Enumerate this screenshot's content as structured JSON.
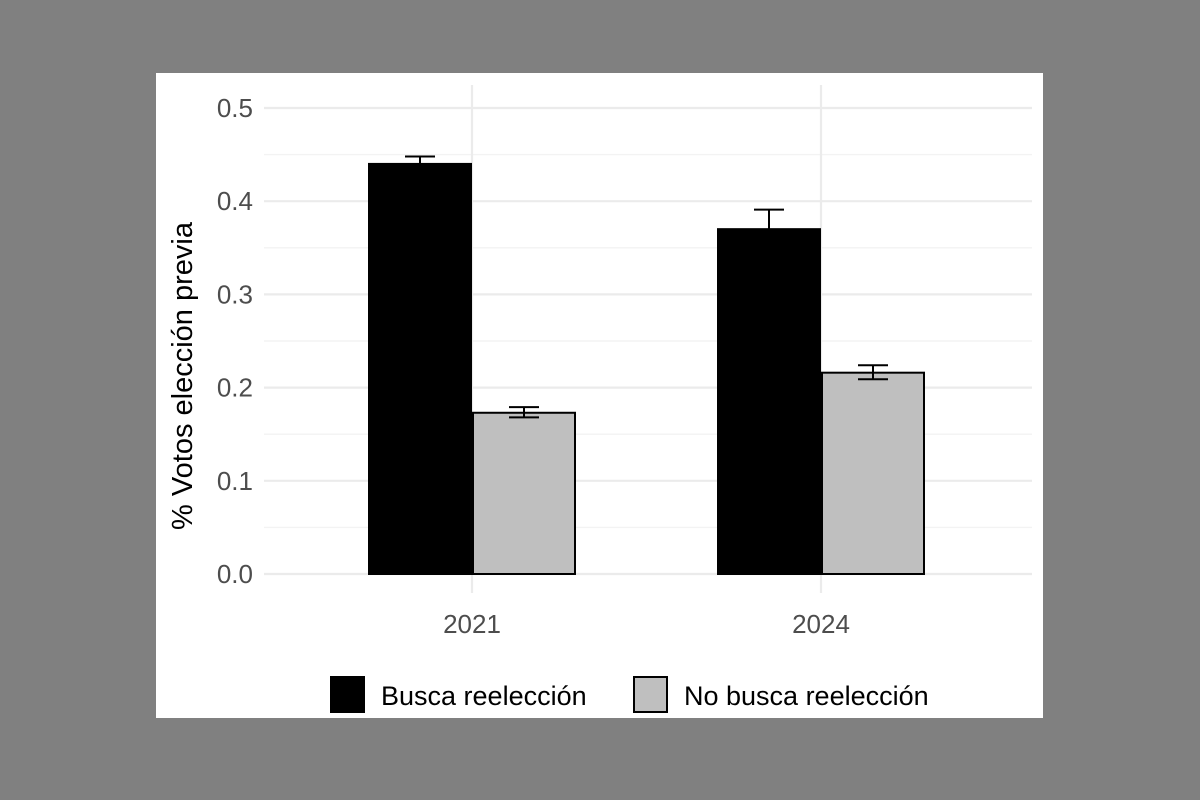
{
  "chart_data": {
    "type": "bar",
    "categories": [
      "2021",
      "2024"
    ],
    "series": [
      {
        "name": "Busca reelección",
        "color": "#000000",
        "values": [
          0.44,
          0.37
        ],
        "error_low": [
          0.432,
          0.347
        ],
        "error_high": [
          0.448,
          0.391
        ]
      },
      {
        "name": "No busca reelección",
        "color": "#bfbfbf",
        "values": [
          0.173,
          0.216
        ],
        "error_low": [
          0.168,
          0.209
        ],
        "error_high": [
          0.179,
          0.224
        ]
      }
    ],
    "title": "",
    "xlabel": "",
    "ylabel": "% Votos elección previa",
    "ylim": [
      0,
      0.5
    ],
    "yticks": [
      "0.0",
      "0.1",
      "0.2",
      "0.3",
      "0.4",
      "0.5"
    ],
    "grid": true,
    "legend_position": "bottom"
  }
}
